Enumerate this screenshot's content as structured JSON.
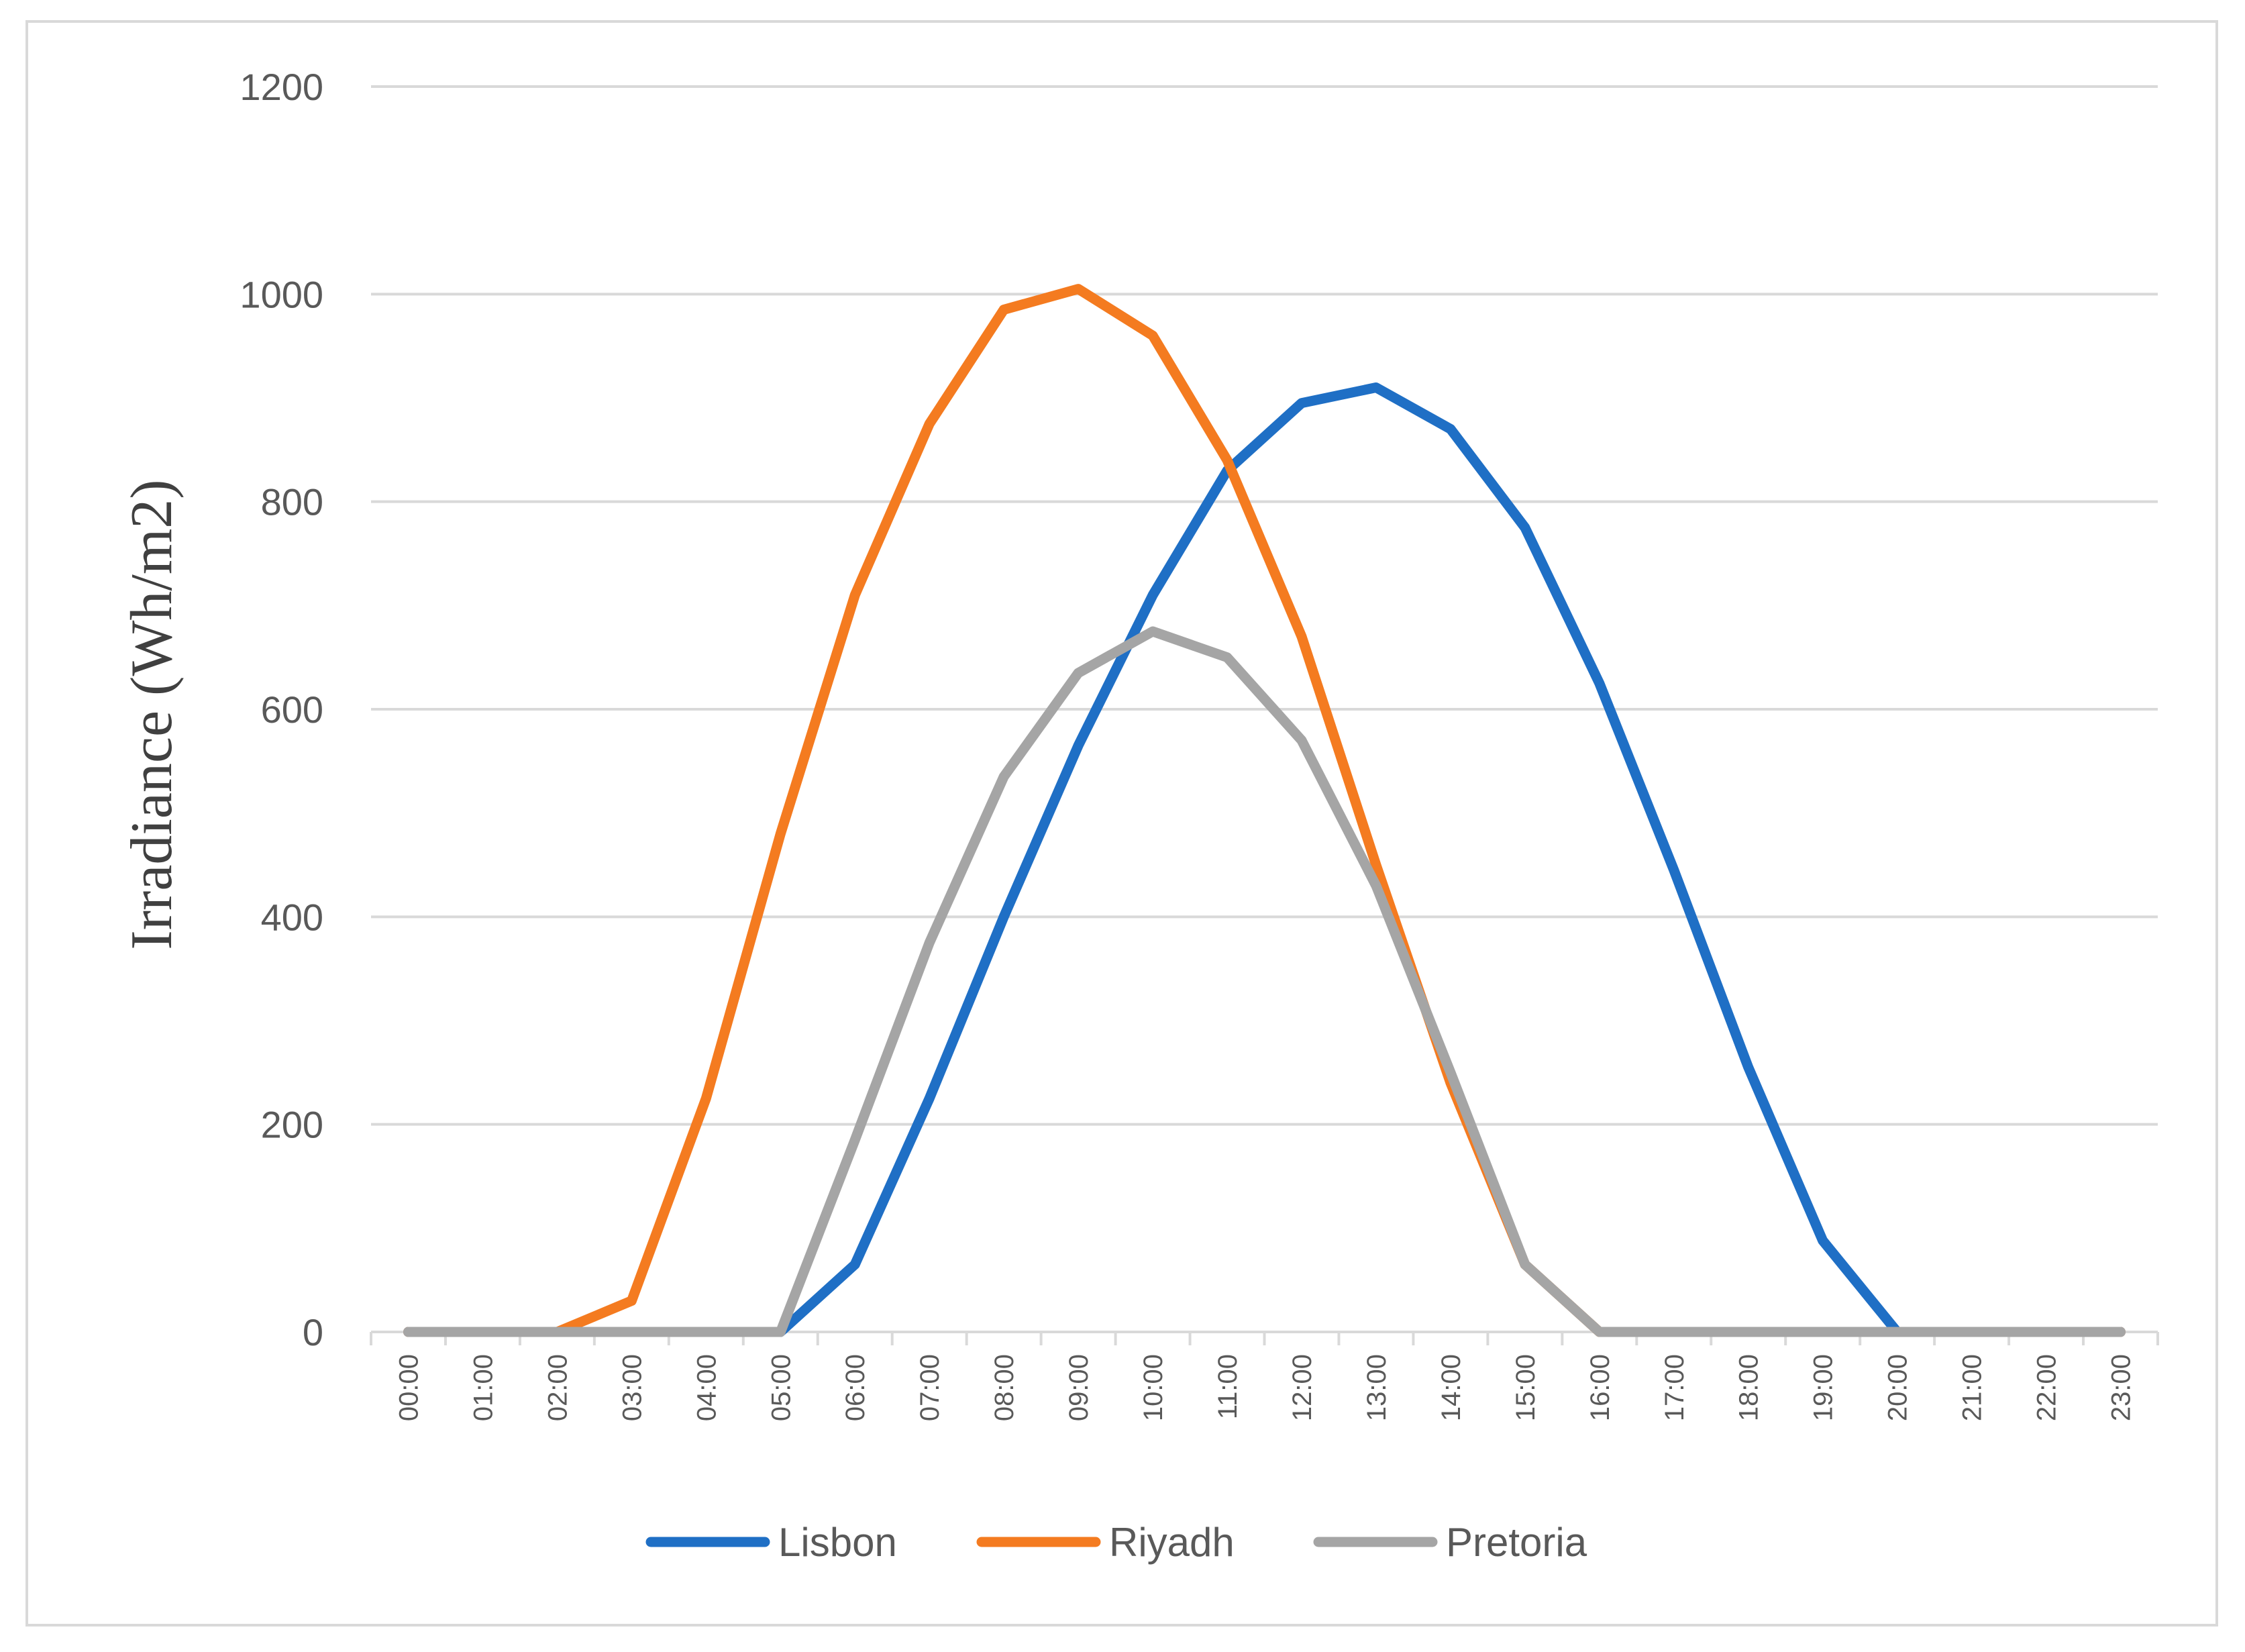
{
  "chart_data": {
    "type": "line",
    "title": "",
    "xlabel": "",
    "ylabel": "Irradiance (Wh/m2)",
    "ylim": [
      0,
      1200
    ],
    "yticks": [
      0,
      200,
      400,
      600,
      800,
      1000,
      1200
    ],
    "grid": true,
    "legend_position": "bottom",
    "categories": [
      "00:00",
      "01:00",
      "02:00",
      "03:00",
      "04:00",
      "05:00",
      "06:00",
      "07:00",
      "08:00",
      "09:00",
      "10:00",
      "11:00",
      "12:00",
      "13:00",
      "14:00",
      "15:00",
      "16:00",
      "17:00",
      "18:00",
      "19:00",
      "20:00",
      "21:00",
      "22:00",
      "23:00"
    ],
    "series": [
      {
        "name": "Lisbon",
        "color": "#1f6fc5",
        "values": [
          0,
          0,
          0,
          0,
          0,
          0,
          65,
          225,
          400,
          565,
          710,
          830,
          895,
          910,
          870,
          775,
          625,
          445,
          255,
          88,
          0,
          0,
          0,
          0
        ]
      },
      {
        "name": "Riyadh",
        "color": "#f47b20",
        "values": [
          0,
          0,
          0,
          30,
          225,
          480,
          710,
          875,
          985,
          1005,
          960,
          840,
          670,
          450,
          240,
          65,
          0,
          0,
          0,
          0,
          0,
          0,
          0,
          0
        ]
      },
      {
        "name": "Pretoria",
        "color": "#a5a5a5",
        "values": [
          0,
          0,
          0,
          0,
          0,
          0,
          185,
          375,
          535,
          635,
          675,
          650,
          570,
          430,
          250,
          65,
          0,
          0,
          0,
          0,
          0,
          0,
          0,
          0
        ]
      }
    ]
  }
}
